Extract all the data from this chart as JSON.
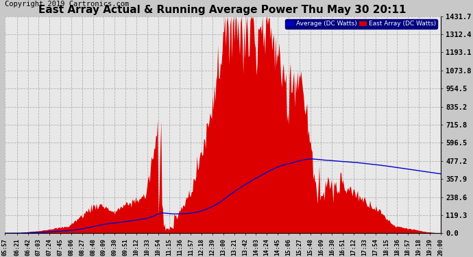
{
  "title": "East Array Actual & Running Average Power Thu May 30 20:11",
  "copyright": "Copyright 2019 Cartronics.com",
  "legend_labels": [
    "Average (DC Watts)",
    "East Array (DC Watts)"
  ],
  "legend_colors_bg": [
    "#0000cc",
    "#cc0000"
  ],
  "yticks": [
    0.0,
    119.3,
    238.6,
    357.9,
    477.2,
    596.5,
    715.8,
    835.2,
    954.5,
    1073.8,
    1193.1,
    1312.4,
    1431.7
  ],
  "ymax": 1431.7,
  "ymin": 0.0,
  "bg_color": "#c8c8c8",
  "plot_bg_color": "#e8e8e8",
  "grid_color": "#aaaaaa",
  "fill_color": "#dd0000",
  "line_color": "#0000cc",
  "title_fontsize": 11,
  "copyright_fontsize": 7.5,
  "xtick_labels": [
    "05:57",
    "06:21",
    "06:42",
    "07:03",
    "07:24",
    "07:45",
    "08:06",
    "08:27",
    "08:48",
    "09:09",
    "09:30",
    "09:51",
    "10:12",
    "10:33",
    "10:54",
    "11:15",
    "11:36",
    "11:57",
    "12:18",
    "12:39",
    "13:00",
    "13:21",
    "13:42",
    "14:03",
    "14:24",
    "14:45",
    "15:06",
    "15:27",
    "15:48",
    "16:09",
    "16:30",
    "16:51",
    "17:12",
    "17:33",
    "17:54",
    "18:15",
    "18:36",
    "18:57",
    "19:18",
    "19:39",
    "20:00"
  ]
}
